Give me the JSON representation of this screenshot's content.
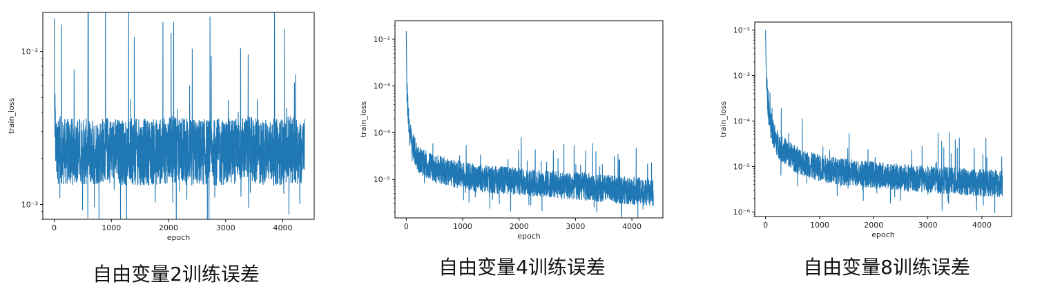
{
  "chart_data": [
    {
      "type": "line",
      "caption": "自由变量2训练误差",
      "xlabel": "epoch",
      "ylabel": "train_loss",
      "yscale": "log",
      "xlim": [
        -200,
        4550
      ],
      "ylim": [
        0.0008,
        0.018
      ],
      "x_ticks": [
        0,
        1000,
        2000,
        3000,
        4000
      ],
      "y_ticks": [
        {
          "value": 0.01,
          "label": "10⁻²"
        },
        {
          "value": 0.001,
          "label": "10⁻³"
        }
      ],
      "color": "#1f77b4",
      "series": [
        {
          "x": [
            0,
            5,
            10,
            20,
            30,
            50,
            100,
            200,
            300,
            400,
            500,
            700,
            900,
            1200,
            1500,
            1800,
            2100,
            2400,
            2700,
            3000,
            3300,
            3600,
            3900,
            4200,
            4380
          ],
          "y": [
            0.0165,
            0.005,
            0.0035,
            0.0028,
            0.0024,
            0.0022,
            0.0023,
            0.0022,
            0.0022,
            0.0023,
            0.0022,
            0.0022,
            0.0023,
            0.0022,
            0.0022,
            0.0022,
            0.0023,
            0.0022,
            0.0022,
            0.0022,
            0.0023,
            0.0022,
            0.0022,
            0.0023,
            0.0022
          ]
        }
      ]
    },
    {
      "type": "line",
      "caption": "自由变量4训练误差",
      "xlabel": "epoch",
      "ylabel": "train_loss",
      "yscale": "log",
      "xlim": [
        -200,
        4550
      ],
      "ylim": [
        1.5e-06,
        0.025
      ],
      "x_ticks": [
        0,
        1000,
        2000,
        3000,
        4000
      ],
      "y_ticks": [
        {
          "value": 0.01,
          "label": "10⁻²"
        },
        {
          "value": 0.001,
          "label": "10⁻³"
        },
        {
          "value": 0.0001,
          "label": "10⁻⁴"
        },
        {
          "value": 1e-05,
          "label": "10⁻⁵"
        }
      ],
      "color": "#1f77b4",
      "series": [
        {
          "x": [
            0,
            10,
            30,
            60,
            100,
            150,
            200,
            300,
            400,
            500,
            700,
            900,
            1200,
            1500,
            1800,
            2100,
            2400,
            2700,
            3000,
            3300,
            3600,
            3900,
            4200,
            4380
          ],
          "y": [
            0.015,
            0.001,
            0.0003,
            0.0001,
            6e-05,
            4e-05,
            3e-05,
            2.2e-05,
            2e-05,
            1.7e-05,
            1.5e-05,
            1.3e-05,
            1.1e-05,
            1e-05,
            9.5e-06,
            8.8e-06,
            8.2e-06,
            7.8e-06,
            7.2e-06,
            6.8e-06,
            6.2e-06,
            5.8e-06,
            5.5e-06,
            5.2e-06
          ]
        }
      ]
    },
    {
      "type": "line",
      "caption": "自由变量8训练误差",
      "xlabel": "epoch",
      "ylabel": "train_loss",
      "yscale": "log",
      "xlim": [
        -200,
        4550
      ],
      "ylim": [
        8e-07,
        0.015
      ],
      "x_ticks": [
        0,
        1000,
        2000,
        3000,
        4000
      ],
      "y_ticks": [
        {
          "value": 0.01,
          "label": "10⁻²"
        },
        {
          "value": 0.001,
          "label": "10⁻³"
        },
        {
          "value": 0.0001,
          "label": "10⁻⁴"
        },
        {
          "value": 1e-05,
          "label": "10⁻⁵"
        },
        {
          "value": 1e-06,
          "label": "10⁻⁶"
        }
      ],
      "color": "#1f77b4",
      "series": [
        {
          "x": [
            0,
            10,
            30,
            60,
            100,
            150,
            200,
            300,
            400,
            500,
            700,
            900,
            1200,
            1500,
            1800,
            2100,
            2400,
            2700,
            3000,
            3300,
            3600,
            3900,
            4200,
            4380
          ],
          "y": [
            0.01,
            0.0015,
            0.0004,
            0.00015,
            8e-05,
            5e-05,
            3.5e-05,
            2.5e-05,
            2e-05,
            1.6e-05,
            1.2e-05,
            1e-05,
            8.5e-06,
            7.5e-06,
            7e-06,
            6.5e-06,
            6e-06,
            5.6e-06,
            5.2e-06,
            5e-06,
            4.7e-06,
            4.5e-06,
            4.3e-06,
            4.2e-06
          ]
        }
      ]
    }
  ]
}
